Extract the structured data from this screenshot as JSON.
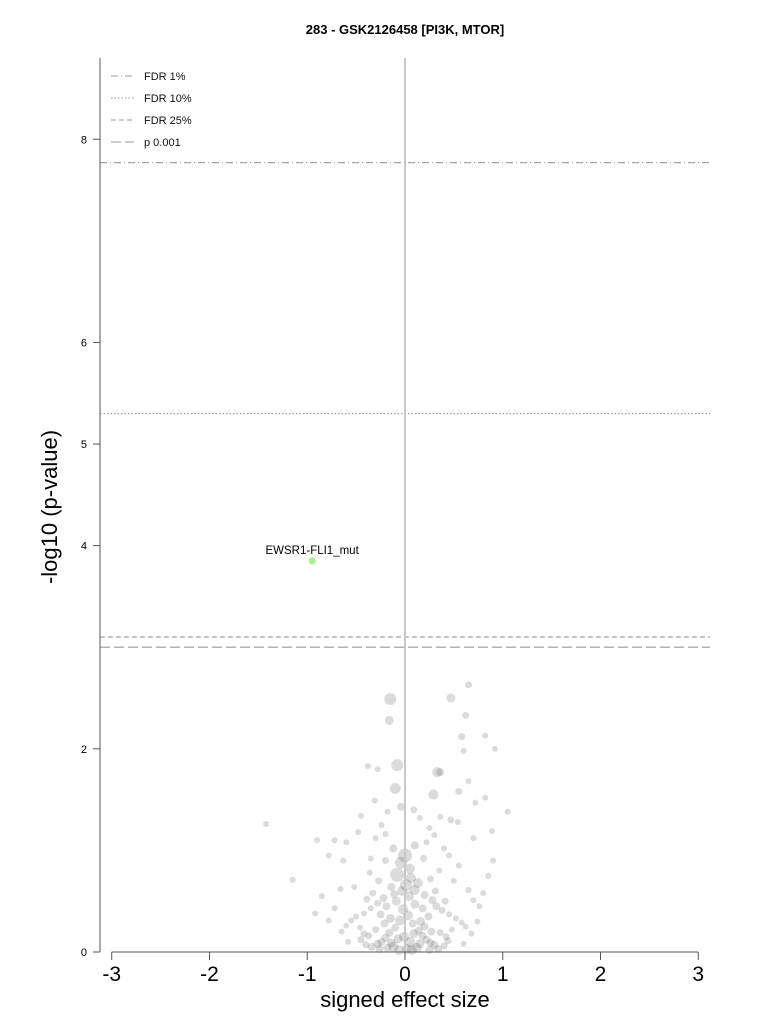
{
  "chart_data": {
    "type": "scatter",
    "title": "283 - GSK2126458 [PI3K, MTOR]",
    "xlabel": "signed effect size",
    "ylabel": "-log10 (p-value)",
    "xlim": [
      -3.12,
      3.12
    ],
    "ylim": [
      0,
      8.8
    ],
    "xticks": [
      -3,
      -2,
      -1,
      0,
      1,
      2,
      3
    ],
    "xtick_labels": [
      "-3",
      "-2",
      "-1",
      "0",
      "1",
      "2",
      "3"
    ],
    "yticks": [
      0,
      2,
      4,
      5,
      6,
      8
    ],
    "ytick_labels": [
      "0",
      "2",
      "4",
      "5",
      "6",
      "8"
    ],
    "legend_position": "top-left",
    "legend": [
      {
        "label": "FDR 1%",
        "style": "dashdot"
      },
      {
        "label": "FDR 10%",
        "style": "dotted"
      },
      {
        "label": "FDR 25%",
        "style": "dashed"
      },
      {
        "label": "p 0.001",
        "style": "longdash"
      }
    ],
    "threshold_lines": [
      {
        "name": "FDR 1%",
        "y": 7.77,
        "style": "dashdot"
      },
      {
        "name": "FDR 10%",
        "y": 5.3,
        "style": "dotted"
      },
      {
        "name": "FDR 25%",
        "y": 3.1,
        "style": "dashed"
      },
      {
        "name": "p 0.001",
        "y": 3.0,
        "style": "longdash"
      }
    ],
    "highlighted": [
      {
        "label": "EWSR1-FLI1_mut",
        "x": -0.95,
        "y": 3.85,
        "color": "#a6f08f"
      }
    ],
    "points": [
      [
        -0.15,
        2.49,
        6
      ],
      [
        -0.16,
        2.28,
        4.5
      ],
      [
        0.47,
        2.5,
        4.5
      ],
      [
        0.65,
        2.63,
        3.5
      ],
      [
        0.62,
        2.33,
        3.5
      ],
      [
        0.58,
        2.12,
        3.5
      ],
      [
        0.82,
        2.13,
        3
      ],
      [
        0.92,
        2.0,
        3
      ],
      [
        0.6,
        1.98,
        3
      ],
      [
        -0.08,
        1.84,
        6
      ],
      [
        -0.38,
        1.83,
        3
      ],
      [
        -0.28,
        1.8,
        3
      ],
      [
        0.33,
        1.77,
        5
      ],
      [
        0.36,
        1.77,
        4
      ],
      [
        -0.1,
        1.61,
        5.5
      ],
      [
        0.29,
        1.55,
        5
      ],
      [
        0.55,
        1.58,
        3.5
      ],
      [
        0.65,
        1.68,
        3
      ],
      [
        0.82,
        1.52,
        3
      ],
      [
        0.72,
        1.47,
        3
      ],
      [
        1.05,
        1.38,
        3
      ],
      [
        -0.04,
        1.43,
        4
      ],
      [
        0.09,
        1.4,
        3.5
      ],
      [
        0.47,
        1.3,
        3.5
      ],
      [
        -0.31,
        1.49,
        3
      ],
      [
        -0.18,
        1.38,
        3
      ],
      [
        -0.45,
        1.34,
        3
      ],
      [
        0.15,
        1.32,
        3
      ],
      [
        0.36,
        1.33,
        3
      ],
      [
        0.54,
        1.28,
        3
      ],
      [
        0.89,
        1.19,
        3
      ],
      [
        0.7,
        1.12,
        3
      ],
      [
        -0.48,
        1.18,
        3
      ],
      [
        -0.2,
        1.16,
        3
      ],
      [
        -1.42,
        1.26,
        3
      ],
      [
        -0.72,
        1.1,
        3
      ],
      [
        -0.9,
        1.1,
        3
      ],
      [
        -0.6,
        1.08,
        3
      ],
      [
        -0.78,
        0.95,
        3
      ],
      [
        -0.63,
        0.9,
        3
      ],
      [
        -0.35,
        0.92,
        3
      ],
      [
        -1.15,
        0.71,
        3
      ],
      [
        0.22,
        1.08,
        3
      ],
      [
        0.4,
        1.02,
        3
      ],
      [
        0.0,
        0.95,
        7
      ],
      [
        -0.04,
        0.88,
        6
      ],
      [
        0.05,
        0.82,
        5
      ],
      [
        -0.08,
        0.76,
        7
      ],
      [
        0.06,
        0.73,
        5
      ],
      [
        0.13,
        0.68,
        5
      ],
      [
        -0.14,
        0.64,
        4
      ],
      [
        0.1,
        0.61,
        5
      ],
      [
        -0.11,
        0.57,
        4
      ],
      [
        0.2,
        0.56,
        4
      ],
      [
        -0.22,
        0.53,
        4
      ],
      [
        0.28,
        0.51,
        4
      ],
      [
        -0.28,
        0.48,
        3.5
      ],
      [
        0.32,
        0.45,
        4
      ],
      [
        -0.35,
        0.43,
        3
      ],
      [
        0.38,
        0.41,
        3.5
      ],
      [
        -0.42,
        0.38,
        3
      ],
      [
        0.45,
        0.37,
        3
      ],
      [
        -0.5,
        0.35,
        3
      ],
      [
        0.52,
        0.33,
        3
      ],
      [
        -0.55,
        0.31,
        3
      ],
      [
        0.58,
        0.29,
        3
      ],
      [
        -0.6,
        0.26,
        3
      ],
      [
        0.62,
        0.25,
        3
      ],
      [
        0.5,
        0.7,
        3
      ],
      [
        0.65,
        0.61,
        3
      ],
      [
        0.7,
        0.51,
        3
      ],
      [
        0.76,
        0.45,
        3
      ],
      [
        0.8,
        0.58,
        3
      ],
      [
        -0.66,
        0.62,
        3
      ],
      [
        -0.72,
        0.43,
        3
      ],
      [
        -0.78,
        0.31,
        3
      ],
      [
        -0.52,
        0.64,
        3
      ],
      [
        0.55,
        0.85,
        3
      ],
      [
        0.45,
        0.95,
        3
      ],
      [
        -0.02,
        0.42,
        5
      ],
      [
        0.03,
        0.36,
        5
      ],
      [
        -0.05,
        0.31,
        5
      ],
      [
        0.08,
        0.28,
        4
      ],
      [
        -0.1,
        0.24,
        4
      ],
      [
        0.14,
        0.21,
        4
      ],
      [
        -0.16,
        0.19,
        4
      ],
      [
        0.18,
        0.16,
        4
      ],
      [
        -0.2,
        0.14,
        4
      ],
      [
        0.22,
        0.12,
        4
      ],
      [
        -0.24,
        0.1,
        4
      ],
      [
        0.26,
        0.09,
        4
      ],
      [
        -0.28,
        0.08,
        4
      ],
      [
        0.3,
        0.07,
        4
      ],
      [
        -0.12,
        0.05,
        5
      ],
      [
        0.12,
        0.04,
        5
      ],
      [
        0.02,
        0.03,
        5
      ],
      [
        -0.06,
        0.02,
        5
      ],
      [
        0.07,
        0.02,
        5
      ],
      [
        -0.18,
        0.04,
        4
      ],
      [
        0.34,
        0.03,
        4
      ],
      [
        -0.34,
        0.05,
        4
      ],
      [
        0.4,
        0.06,
        3.5
      ],
      [
        -0.4,
        0.07,
        3.5
      ],
      [
        0.42,
        0.15,
        3.5
      ],
      [
        -0.42,
        0.18,
        3.5
      ],
      [
        0.48,
        0.22,
        3
      ],
      [
        -0.46,
        0.24,
        3
      ],
      [
        0.16,
        0.3,
        4.5
      ],
      [
        -0.15,
        0.33,
        4.5
      ],
      [
        0.24,
        0.35,
        4
      ],
      [
        -0.25,
        0.37,
        4
      ],
      [
        0.1,
        0.47,
        4.5
      ],
      [
        -0.09,
        0.5,
        4.5
      ],
      [
        0.18,
        0.43,
        4
      ],
      [
        -0.19,
        0.45,
        4
      ],
      [
        0.04,
        0.55,
        5
      ],
      [
        -0.03,
        0.6,
        5
      ],
      [
        0.01,
        0.66,
        6
      ],
      [
        0.09,
        0.18,
        4.5
      ],
      [
        -0.07,
        0.13,
        4.5
      ],
      [
        0.2,
        0.25,
        4
      ],
      [
        -0.21,
        0.28,
        4
      ],
      [
        0.27,
        0.2,
        4
      ],
      [
        -0.3,
        0.22,
        3.5
      ],
      [
        0.36,
        0.19,
        3.5
      ],
      [
        -0.37,
        0.16,
        3.5
      ],
      [
        0.44,
        0.11,
        3.5
      ],
      [
        -0.45,
        0.12,
        3.5
      ],
      [
        0.05,
        0.1,
        5
      ],
      [
        -0.01,
        0.15,
        5
      ],
      [
        0.15,
        0.08,
        4.5
      ],
      [
        -0.14,
        0.09,
        4.5
      ],
      [
        0.25,
        0.02,
        4
      ],
      [
        -0.26,
        0.03,
        4
      ],
      [
        0.6,
        0.08,
        3
      ],
      [
        -0.58,
        0.1,
        3
      ],
      [
        0.68,
        0.18,
        3
      ],
      [
        -0.65,
        0.2,
        3
      ],
      [
        0.74,
        0.3,
        3
      ],
      [
        0.85,
        0.75,
        3
      ],
      [
        0.9,
        0.9,
        3
      ],
      [
        -0.85,
        0.55,
        3
      ],
      [
        -0.92,
        0.38,
        3
      ],
      [
        0.31,
        0.6,
        3.5
      ],
      [
        -0.33,
        0.58,
        3.5
      ],
      [
        0.41,
        0.5,
        3.5
      ],
      [
        -0.39,
        0.52,
        3.5
      ],
      [
        0.26,
        0.72,
        3.5
      ],
      [
        -0.27,
        0.7,
        3.5
      ],
      [
        0.35,
        0.8,
        3
      ],
      [
        -0.36,
        0.78,
        3
      ],
      [
        0.19,
        0.92,
        3.5
      ],
      [
        -0.2,
        0.9,
        3.5
      ],
      [
        0.1,
        1.05,
        4
      ],
      [
        -0.12,
        1.02,
        4
      ],
      [
        0.3,
        1.15,
        3
      ],
      [
        -0.3,
        1.12,
        3
      ],
      [
        0.25,
        1.22,
        3
      ],
      [
        -0.24,
        1.25,
        3
      ]
    ]
  }
}
